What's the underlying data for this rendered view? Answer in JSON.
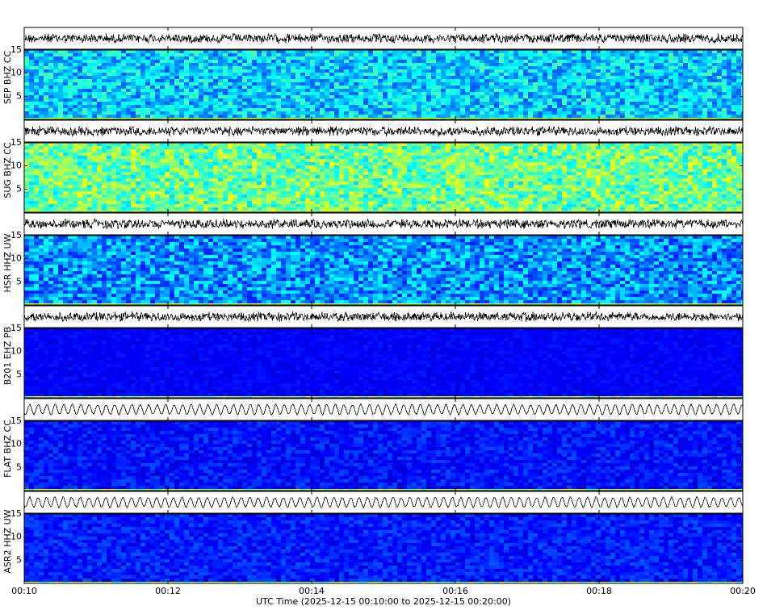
{
  "chart_data": {
    "type": "spectrogram",
    "panels": [
      "SEP BHZ CC",
      "SUG BHZ CC",
      "HSR HHZ UW",
      "B201 EHZ PB",
      "FLAT BHZ CC",
      "ASR2 HHZ UW"
    ],
    "ylim": [
      0,
      15
    ],
    "yticks": [
      5,
      10,
      15
    ],
    "xlim": [
      10,
      20
    ],
    "xticks": [
      {
        "value": 10,
        "label": "00:10"
      },
      {
        "value": 12,
        "label": "00:12"
      },
      {
        "value": 14,
        "label": "00:14"
      },
      {
        "value": 16,
        "label": "00:16"
      },
      {
        "value": 18,
        "label": "00:18"
      },
      {
        "value": 20,
        "label": "00:20"
      }
    ],
    "xlabel": "UTC Time (2025-12-15 00:10:00 to 2025-12-15 00:20:00)",
    "colormap": "jet"
  }
}
